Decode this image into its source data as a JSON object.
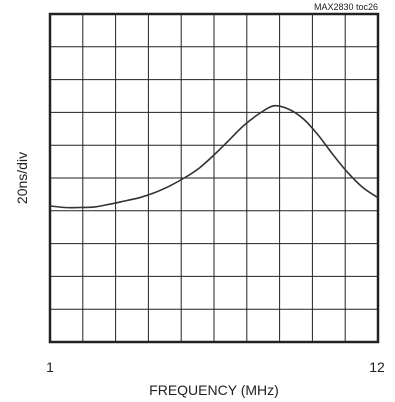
{
  "chart_data": {
    "type": "line",
    "title": "",
    "annotation": "MAX2830 toc26",
    "xlabel": "FREQUENCY (MHz)",
    "ylabel": "20ns/div",
    "xlim": [
      1,
      12
    ],
    "ylim": [
      0,
      10
    ],
    "x_tick_labels": [
      "1",
      "12"
    ],
    "grid": true,
    "grid_divisions": {
      "x": 10,
      "y": 10
    },
    "line_color": "#333333",
    "series": [
      {
        "x": [
          1.0,
          1.5,
          2.0,
          2.5,
          3.0,
          3.5,
          4.0,
          4.5,
          5.0,
          5.5,
          6.0,
          6.5,
          7.0,
          7.5,
          8.0,
          8.5,
          9.0,
          9.5,
          10.0,
          10.5,
          11.0,
          11.5,
          12.0
        ],
        "y": [
          4.15,
          4.1,
          4.1,
          4.12,
          4.2,
          4.3,
          4.4,
          4.55,
          4.75,
          5.0,
          5.3,
          5.7,
          6.15,
          6.6,
          6.95,
          7.2,
          7.1,
          6.8,
          6.3,
          5.7,
          5.15,
          4.7,
          4.4
        ]
      }
    ]
  }
}
